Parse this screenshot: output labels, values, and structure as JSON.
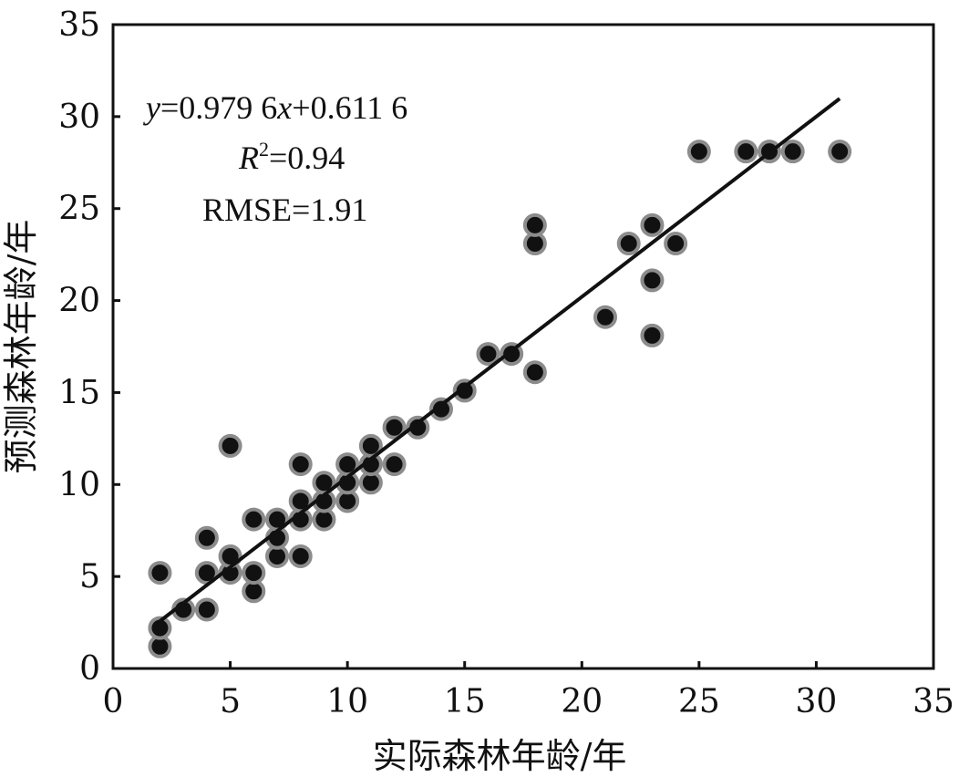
{
  "chart_data": {
    "type": "scatter",
    "xlabel": "实际森林年龄/年",
    "ylabel": "预测森林年龄/年",
    "xlim": [
      0,
      35
    ],
    "ylim": [
      0,
      35
    ],
    "xticks": [
      "0",
      "5",
      "10",
      "15",
      "20",
      "25",
      "30",
      "35"
    ],
    "yticks": [
      "0",
      "5",
      "10",
      "15",
      "20",
      "25",
      "30",
      "35"
    ],
    "grid": false,
    "legend": "none",
    "marker_fill": "#111111",
    "marker_edge": "#8c8c8c",
    "line_color": "#111111",
    "equation": {
      "y": "y",
      "rest1": "=0.979 6",
      "x": "x",
      "rest2": "+0.611 6"
    },
    "r2": {
      "r": "R",
      "sup": "2",
      "rest": "=0.94"
    },
    "rmse": "RMSE=1.91",
    "fit_line": {
      "slope": 0.9796,
      "intercept": 0.6116,
      "x_range": [
        2,
        31
      ]
    },
    "points": [
      [
        2,
        1.2
      ],
      [
        2,
        2.2
      ],
      [
        2,
        5.2
      ],
      [
        3,
        3.2
      ],
      [
        4,
        3.2
      ],
      [
        4,
        5.2
      ],
      [
        4,
        7.1
      ],
      [
        5,
        5.2
      ],
      [
        5,
        6.1
      ],
      [
        5,
        12.1
      ],
      [
        6,
        4.2
      ],
      [
        6,
        5.2
      ],
      [
        6,
        8.1
      ],
      [
        7,
        6.1
      ],
      [
        7,
        7.1
      ],
      [
        7,
        8.1
      ],
      [
        8,
        6.1
      ],
      [
        8,
        8.1
      ],
      [
        8,
        9.1
      ],
      [
        8,
        11.1
      ],
      [
        9,
        8.1
      ],
      [
        9,
        9.1
      ],
      [
        9,
        10.1
      ],
      [
        10,
        9.1
      ],
      [
        10,
        10.1
      ],
      [
        10,
        11.1
      ],
      [
        11,
        10.1
      ],
      [
        11,
        11.1
      ],
      [
        11,
        12.1
      ],
      [
        12,
        11.1
      ],
      [
        12,
        13.1
      ],
      [
        13,
        13.1
      ],
      [
        14,
        14.1
      ],
      [
        15,
        15.1
      ],
      [
        16,
        17.1
      ],
      [
        17,
        17.1
      ],
      [
        18,
        16.1
      ],
      [
        18,
        23.1
      ],
      [
        18,
        24.1
      ],
      [
        21,
        19.1
      ],
      [
        22,
        23.1
      ],
      [
        23,
        18.1
      ],
      [
        23,
        21.1
      ],
      [
        23,
        24.1
      ],
      [
        24,
        23.1
      ],
      [
        25,
        28.1
      ],
      [
        27,
        28.1
      ],
      [
        28,
        28.1
      ],
      [
        29,
        28.1
      ],
      [
        31,
        28.1
      ]
    ]
  }
}
